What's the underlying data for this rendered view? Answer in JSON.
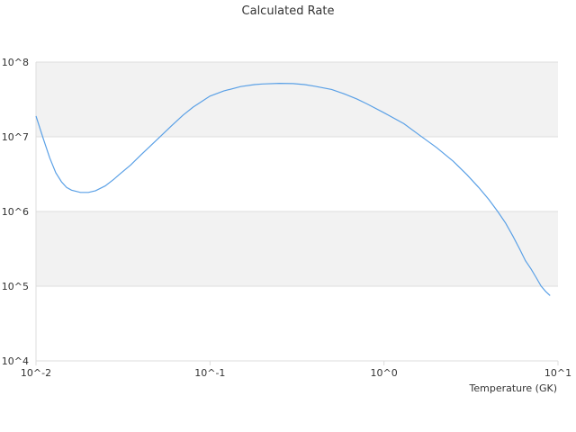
{
  "chart_data": {
    "type": "line",
    "title": "Calculated Rate",
    "xlabel": "Temperature (GK)",
    "ylabel": "",
    "x_scale": "log",
    "y_scale": "log",
    "xlim": [
      0.01,
      10
    ],
    "ylim": [
      10000,
      100000000
    ],
    "x_tick_values": [
      0.01,
      0.1,
      1,
      10
    ],
    "x_tick_labels": [
      "10^-2",
      "10^-1",
      "10^0",
      "10^1"
    ],
    "y_tick_values": [
      10000,
      100000,
      1000000,
      10000000,
      100000000
    ],
    "y_tick_labels": [
      "10^4",
      "10^5",
      "10^6",
      "10^7",
      "10^8"
    ],
    "grid": true,
    "banding": true,
    "colors": {
      "line": "#5aa0e6",
      "band": "#f2f2f2",
      "grid": "#dddddd"
    },
    "series": [
      {
        "x": [
          0.01,
          0.011,
          0.012,
          0.013,
          0.014,
          0.015,
          0.016,
          0.018,
          0.02,
          0.022,
          0.025,
          0.028,
          0.03,
          0.035,
          0.04,
          0.05,
          0.06,
          0.07,
          0.08,
          0.1,
          0.12,
          0.15,
          0.18,
          0.2,
          0.25,
          0.3,
          0.35,
          0.4,
          0.5,
          0.6,
          0.7,
          0.8,
          1.0,
          1.3,
          1.6,
          2.0,
          2.5,
          3.0,
          3.5,
          4.0,
          4.5,
          5.0,
          5.5,
          6.0,
          6.5,
          7.0,
          7.5,
          8.0,
          8.5,
          9.0
        ],
        "y": [
          19000000,
          9500000,
          5200000,
          3300000,
          2500000,
          2100000,
          1930000,
          1800000,
          1800000,
          1900000,
          2200000,
          2700000,
          3100000,
          4200000,
          5700000,
          9300000,
          14000000,
          19500000,
          25000000,
          35000000,
          41000000,
          47000000,
          50000000,
          51000000,
          52000000,
          51500000,
          50000000,
          47500000,
          43000000,
          37000000,
          32000000,
          27500000,
          21000000,
          15000000,
          10500000,
          7200000,
          4700000,
          3100000,
          2100000,
          1450000,
          1000000,
          700000,
          470000,
          320000,
          220000,
          170000,
          130000,
          100000,
          85000,
          75000
        ]
      }
    ]
  }
}
